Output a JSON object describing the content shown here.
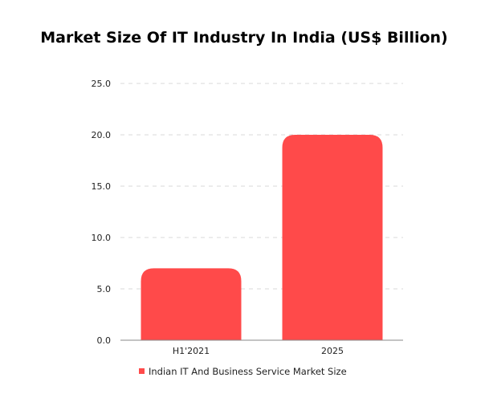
{
  "chart_data": {
    "type": "bar",
    "title": "Market Size Of IT Industry In India (US$ Billion)",
    "categories": [
      "H1'2021",
      "2025"
    ],
    "series": [
      {
        "name": "Indian IT And Business Service Market Size",
        "values": [
          7.0,
          20.0
        ]
      }
    ],
    "yticks": [
      "0.0",
      "5.0",
      "10.0",
      "15.0",
      "20.0",
      "25.0"
    ],
    "ylim": [
      0,
      25
    ],
    "grid": true,
    "legend_position": "bottom",
    "colors": {
      "bar": "#ff4a4a",
      "grid": "#d9d9d9",
      "axis": "#888888"
    }
  }
}
